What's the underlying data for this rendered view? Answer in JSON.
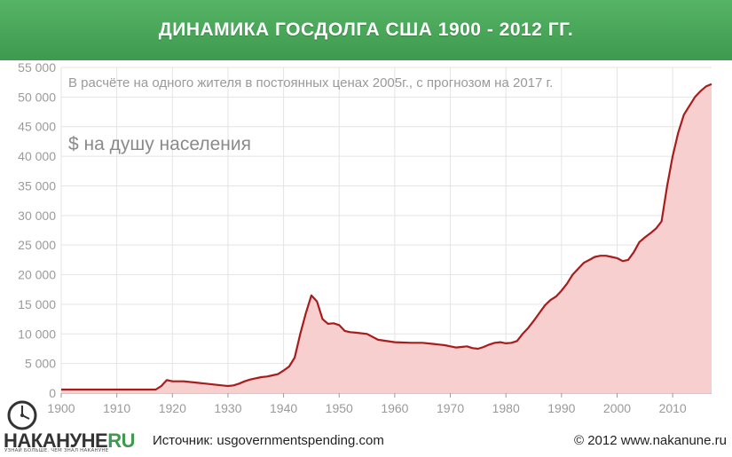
{
  "header": {
    "title": "ДИНАМИКА ГОСДОЛГА США 1900 - 2012 ГГ."
  },
  "footer": {
    "logo_main": "НАКАНУНЕ",
    "logo_suffix": "RU",
    "tagline": "УЗНАЙ БОЛЬШЕ. ЧЕМ ЗНАЛ НАКАНУНЕ",
    "source": "Источник:  usgovernmentspending.com",
    "copyright": "© 2012 www.nakanune.ru"
  },
  "colors": {
    "banner": "#4aa45a",
    "line": "#a81c1c",
    "fill": "#f7cfcf",
    "axis_text": "#9a9a9a"
  },
  "chart_data": {
    "type": "area",
    "subtitle": "В расчёте на одного жителя в постоянных ценах 2005г., с прогнозом на 2017 г.",
    "ylabel": "$ на душу населения",
    "xlim": [
      1900,
      2017
    ],
    "ylim": [
      0,
      55000
    ],
    "xticks": [
      1900,
      1910,
      1920,
      1930,
      1940,
      1950,
      1960,
      1970,
      1980,
      1990,
      2000,
      2010
    ],
    "yticks": [
      "0",
      "5 000",
      "10 000",
      "15 000",
      "20 000",
      "25 000",
      "30 000",
      "35 000",
      "40 000",
      "45 000",
      "50 000",
      "55 000"
    ],
    "grid": true,
    "x": [
      1900,
      1905,
      1910,
      1915,
      1917,
      1918,
      1919,
      1920,
      1922,
      1924,
      1926,
      1928,
      1930,
      1931,
      1932,
      1933,
      1934,
      1935,
      1936,
      1937,
      1938,
      1939,
      1940,
      1941,
      1942,
      1943,
      1944,
      1945,
      1946,
      1947,
      1948,
      1949,
      1950,
      1951,
      1952,
      1953,
      1955,
      1957,
      1960,
      1963,
      1965,
      1967,
      1968,
      1969,
      1970,
      1971,
      1972,
      1973,
      1974,
      1975,
      1976,
      1977,
      1978,
      1979,
      1980,
      1981,
      1982,
      1983,
      1984,
      1985,
      1986,
      1987,
      1988,
      1989,
      1990,
      1991,
      1992,
      1993,
      1994,
      1995,
      1996,
      1997,
      1998,
      1999,
      2000,
      2001,
      2002,
      2003,
      2004,
      2005,
      2006,
      2007,
      2008,
      2009,
      2010,
      2011,
      2012,
      2013,
      2014,
      2015,
      2016,
      2017
    ],
    "y": [
      600,
      600,
      600,
      600,
      600,
      1200,
      2200,
      2000,
      2000,
      1800,
      1600,
      1400,
      1200,
      1300,
      1600,
      2000,
      2300,
      2500,
      2700,
      2800,
      3000,
      3200,
      3800,
      4500,
      6000,
      10000,
      13500,
      16500,
      15500,
      12500,
      11700,
      11800,
      11500,
      10500,
      10300,
      10200,
      10000,
      9000,
      8600,
      8500,
      8500,
      8300,
      8200,
      8100,
      7900,
      7700,
      7800,
      7900,
      7600,
      7500,
      7800,
      8200,
      8500,
      8600,
      8400,
      8500,
      8800,
      10000,
      11000,
      12200,
      13500,
      14800,
      15700,
      16300,
      17300,
      18500,
      20000,
      21000,
      22000,
      22500,
      23000,
      23200,
      23200,
      23000,
      22800,
      22300,
      22500,
      23800,
      25500,
      26300,
      27000,
      27800,
      29000,
      35000,
      40000,
      44000,
      47000,
      48500,
      50000,
      51000,
      51800,
      52200
    ]
  }
}
